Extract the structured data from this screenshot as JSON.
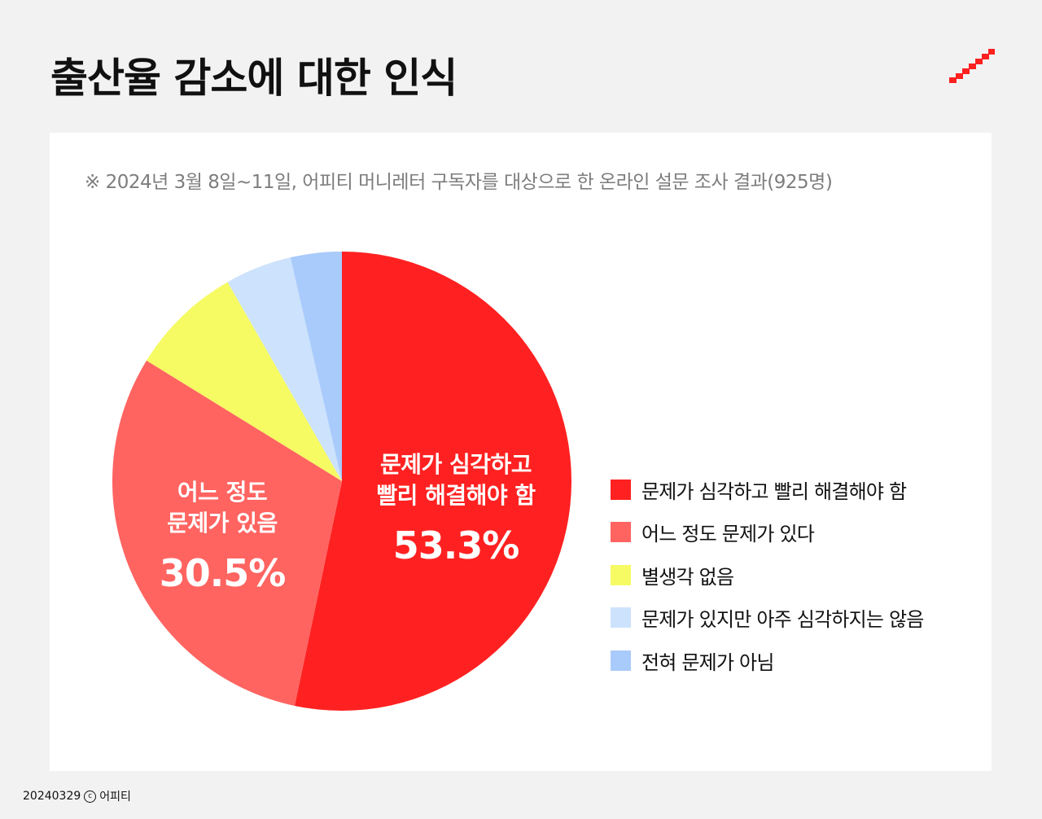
{
  "title": "출산율 감소에 대한 인식",
  "note": "※ 2024년 3월 8일~11일, 어피티 머니레터 구독자를 대상으로 한 온라인 설문 조사 결과(925명)",
  "footer": {
    "date": "20240329",
    "copyright_symbol": "c",
    "owner": "어피티"
  },
  "brand_icon": "stair-step-logo-icon",
  "brand_color": "#ff2020",
  "chart_data": {
    "type": "pie",
    "title": "출산율 감소에 대한 인식",
    "slices": [
      {
        "label": "문제가 심각하고 빨리 해결해야 함",
        "value": 53.3,
        "color": "#ff2121",
        "callout": {
          "lines": [
            "문제가 심각하고",
            "빨리 해결해야 함"
          ],
          "value_text": "53.3%"
        }
      },
      {
        "label": "어느 정도 문제가 있다",
        "value": 30.5,
        "color": "#ff6461",
        "callout": {
          "lines": [
            "어느 정도",
            "문제가 있음"
          ],
          "value_text": "30.5%"
        }
      },
      {
        "label": "별생각 없음",
        "value": 7.9,
        "color": "#f6fb63"
      },
      {
        "label": "문제가 있지만 아주 심각하지는 않음",
        "value": 4.7,
        "color": "#cde2fc"
      },
      {
        "label": "전혀 문제가 아님",
        "value": 3.6,
        "color": "#a9cbfb"
      }
    ],
    "legend_position": "right",
    "start_angle": "12 o'clock",
    "direction": "clockwise"
  }
}
